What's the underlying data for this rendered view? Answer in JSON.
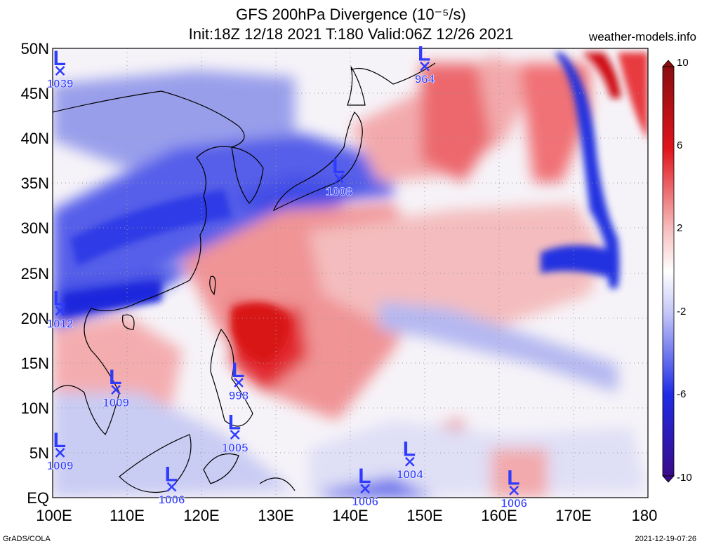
{
  "title_line1": "GFS 200hPa Divergence (10⁻⁵/s)",
  "title_line2": "Init:18Z 12/18 2021 T:180 Valid:06Z 12/26 2021",
  "site": "weather-models.info",
  "footer_left": "GrADS/COLA",
  "footer_right": "2021-12-19-07:26",
  "lon_labels": [
    "100E",
    "110E",
    "120E",
    "130E",
    "140E",
    "150E",
    "160E",
    "170E",
    "180"
  ],
  "lat_labels": [
    "50N",
    "45N",
    "40N",
    "35N",
    "30N",
    "25N",
    "20N",
    "15N",
    "10N",
    "5N",
    "EQ"
  ],
  "colorbar_labels": [
    "10",
    "6",
    "2",
    "-2",
    "-6",
    "-10"
  ],
  "colors": {
    "positive": "#e0141b",
    "negative": "#1f2ce6",
    "neutral": "#ffffff",
    "marker": "#2f3bff"
  },
  "systems": [
    {
      "label": "L",
      "value": "1039",
      "lon": 101,
      "lat": 47.5
    },
    {
      "label": "L",
      "value": "964",
      "lon": 150,
      "lat": 48
    },
    {
      "label": "L",
      "value": "1008",
      "lon": 138.5,
      "lat": 35.5
    },
    {
      "label": "L",
      "value": "1012",
      "lon": 101,
      "lat": 20.8
    },
    {
      "label": "L",
      "value": "1009",
      "lon": 108.5,
      "lat": 12
    },
    {
      "label": "L",
      "value": "998",
      "lon": 125,
      "lat": 12.8
    },
    {
      "label": "L",
      "value": "1005",
      "lon": 124.5,
      "lat": 7
    },
    {
      "label": "L",
      "value": "1009",
      "lon": 101,
      "lat": 5
    },
    {
      "label": "L",
      "value": "1006",
      "lon": 116,
      "lat": 1.2
    },
    {
      "label": "L",
      "value": "1006",
      "lon": 142,
      "lat": 1
    },
    {
      "label": "L",
      "value": "1004",
      "lon": 148,
      "lat": 4
    },
    {
      "label": "L",
      "value": "1006",
      "lon": 162,
      "lat": 0.8
    }
  ]
}
